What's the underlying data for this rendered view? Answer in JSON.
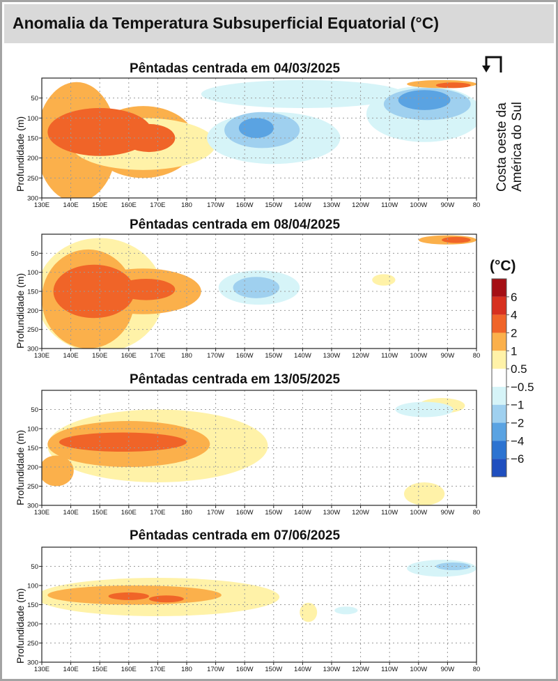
{
  "title": "Anomalia da Temperatura Subsuperficial Equatorial (°C)",
  "ylabel": "Profundidade (m)",
  "coast_note": [
    "Costa oeste da",
    "América do Sul"
  ],
  "colorbar": {
    "title": "(°C)",
    "labels": [
      "6",
      "4",
      "2",
      "1",
      "0.5",
      "−0.5",
      "−1",
      "−2",
      "−4",
      "−6"
    ],
    "colors": [
      "#a50f15",
      "#d7301f",
      "#f06428",
      "#fbb04b",
      "#fff2a8",
      "#ffffff",
      "#d6f4f8",
      "#9fd0ef",
      "#5aa3e2",
      "#2c73d1",
      "#1f4fbf"
    ]
  },
  "chart_data": [
    {
      "type": "heatmap",
      "title": "Pêntadas centrada em 04/03/2025",
      "xlabel": "",
      "ylabel": "Profundidade (m)",
      "x_ticks": [
        "130E",
        "140E",
        "150E",
        "160E",
        "170E",
        "180",
        "170W",
        "160W",
        "150W",
        "140W",
        "130W",
        "120W",
        "110W",
        "100W",
        "90W",
        "80"
      ],
      "y_ticks": [
        "50",
        "100",
        "150",
        "200",
        "250",
        "300"
      ],
      "xlim_deg_east": [
        130,
        280
      ],
      "ylim_m": [
        0,
        300
      ],
      "grid": true,
      "features": [
        {
          "level": 1,
          "lon": 142,
          "depth": 160,
          "rlon": 14,
          "rdepth": 150
        },
        {
          "level": 1,
          "lon": 165,
          "depth": 160,
          "rlon": 18,
          "rdepth": 90
        },
        {
          "level": 0.5,
          "lon": 165,
          "depth": 165,
          "rlon": 25,
          "rdepth": 65
        },
        {
          "level": 2,
          "lon": 150,
          "depth": 135,
          "rlon": 18,
          "rdepth": 60
        },
        {
          "level": 2,
          "lon": 167,
          "depth": 150,
          "rlon": 9,
          "rdepth": 35
        },
        {
          "level": -0.5,
          "lon": 220,
          "depth": 40,
          "rlon": 35,
          "rdepth": 35
        },
        {
          "level": -0.5,
          "lon": 210,
          "depth": 150,
          "rlon": 23,
          "rdepth": 65
        },
        {
          "level": -1,
          "lon": 206,
          "depth": 130,
          "rlon": 13,
          "rdepth": 45
        },
        {
          "level": -2,
          "lon": 204,
          "depth": 125,
          "rlon": 6,
          "rdepth": 25
        },
        {
          "level": -0.5,
          "lon": 262,
          "depth": 90,
          "rlon": 20,
          "rdepth": 70
        },
        {
          "level": -1,
          "lon": 263,
          "depth": 65,
          "rlon": 15,
          "rdepth": 40
        },
        {
          "level": -2,
          "lon": 262,
          "depth": 55,
          "rlon": 9,
          "rdepth": 25
        },
        {
          "level": 1,
          "lon": 268,
          "depth": 15,
          "rlon": 12,
          "rdepth": 10
        },
        {
          "level": 2,
          "lon": 272,
          "depth": 18,
          "rlon": 6,
          "rdepth": 7
        }
      ]
    },
    {
      "type": "heatmap",
      "title": "Pêntadas centrada em 08/04/2025",
      "xlabel": "",
      "ylabel": "Profundidade (m)",
      "x_ticks": [
        "130E",
        "140E",
        "150E",
        "160E",
        "170E",
        "180",
        "170W",
        "160W",
        "150W",
        "140W",
        "130W",
        "120W",
        "110W",
        "100W",
        "90W",
        "80"
      ],
      "y_ticks": [
        "50",
        "100",
        "150",
        "200",
        "250",
        "300"
      ],
      "xlim_deg_east": [
        130,
        280
      ],
      "ylim_m": [
        0,
        300
      ],
      "grid": true,
      "features": [
        {
          "level": 0.5,
          "lon": 150,
          "depth": 160,
          "rlon": 22,
          "rdepth": 150
        },
        {
          "level": 1,
          "lon": 146,
          "depth": 170,
          "rlon": 16,
          "rdepth": 130
        },
        {
          "level": 1,
          "lon": 165,
          "depth": 150,
          "rlon": 20,
          "rdepth": 60
        },
        {
          "level": 2,
          "lon": 148,
          "depth": 150,
          "rlon": 14,
          "rdepth": 70
        },
        {
          "level": 2,
          "lon": 166,
          "depth": 145,
          "rlon": 10,
          "rdepth": 28
        },
        {
          "level": -0.5,
          "lon": 205,
          "depth": 140,
          "rlon": 14,
          "rdepth": 45
        },
        {
          "level": -1,
          "lon": 204,
          "depth": 140,
          "rlon": 8,
          "rdepth": 28
        },
        {
          "level": 1,
          "lon": 270,
          "depth": 15,
          "rlon": 10,
          "rdepth": 12
        },
        {
          "level": 2,
          "lon": 273,
          "depth": 15,
          "rlon": 5,
          "rdepth": 8
        },
        {
          "level": 0.5,
          "lon": 248,
          "depth": 120,
          "rlon": 4,
          "rdepth": 15
        }
      ]
    },
    {
      "type": "heatmap",
      "title": "Pêntadas centrada em 13/05/2025",
      "xlabel": "",
      "ylabel": "Profundidade (m)",
      "x_ticks": [
        "130E",
        "140E",
        "150E",
        "160E",
        "170E",
        "180",
        "170W",
        "160W",
        "150W",
        "140W",
        "130W",
        "120W",
        "110W",
        "100W",
        "90W",
        "80"
      ],
      "y_ticks": [
        "50",
        "100",
        "150",
        "200",
        "250",
        "300"
      ],
      "xlim_deg_east": [
        130,
        280
      ],
      "ylim_m": [
        0,
        300
      ],
      "grid": true,
      "features": [
        {
          "level": 0.5,
          "lon": 170,
          "depth": 145,
          "rlon": 38,
          "rdepth": 95
        },
        {
          "level": 1,
          "lon": 160,
          "depth": 140,
          "rlon": 28,
          "rdepth": 60
        },
        {
          "level": 2,
          "lon": 158,
          "depth": 135,
          "rlon": 22,
          "rdepth": 25
        },
        {
          "level": 1,
          "lon": 135,
          "depth": 210,
          "rlon": 6,
          "rdepth": 40
        },
        {
          "level": 0.5,
          "lon": 268,
          "depth": 40,
          "rlon": 8,
          "rdepth": 20
        },
        {
          "level": -0.5,
          "lon": 262,
          "depth": 50,
          "rlon": 10,
          "rdepth": 20
        },
        {
          "level": 0.5,
          "lon": 262,
          "depth": 270,
          "rlon": 7,
          "rdepth": 30
        }
      ]
    },
    {
      "type": "heatmap",
      "title": "Pêntadas centrada em 07/06/2025",
      "xlabel": "",
      "ylabel": "Profundidade (m)",
      "x_ticks": [
        "130E",
        "140E",
        "150E",
        "160E",
        "170E",
        "180",
        "170W",
        "160W",
        "150W",
        "140W",
        "130W",
        "120W",
        "110W",
        "100W",
        "90W",
        "80"
      ],
      "y_ticks": [
        "50",
        "100",
        "150",
        "200",
        "250",
        "300"
      ],
      "xlim_deg_east": [
        130,
        280
      ],
      "ylim_m": [
        0,
        300
      ],
      "grid": true,
      "features": [
        {
          "level": 0.5,
          "lon": 170,
          "depth": 130,
          "rlon": 42,
          "rdepth": 50
        },
        {
          "level": 1,
          "lon": 162,
          "depth": 125,
          "rlon": 30,
          "rdepth": 25
        },
        {
          "level": 2,
          "lon": 160,
          "depth": 128,
          "rlon": 7,
          "rdepth": 10
        },
        {
          "level": 2,
          "lon": 173,
          "depth": 135,
          "rlon": 6,
          "rdepth": 9
        },
        {
          "level": -0.5,
          "lon": 268,
          "depth": 55,
          "rlon": 12,
          "rdepth": 22
        },
        {
          "level": -1,
          "lon": 272,
          "depth": 50,
          "rlon": 6,
          "rdepth": 10
        },
        {
          "level": 0.5,
          "lon": 222,
          "depth": 170,
          "rlon": 3,
          "rdepth": 25
        },
        {
          "level": -0.5,
          "lon": 235,
          "depth": 165,
          "rlon": 4,
          "rdepth": 10
        }
      ]
    }
  ]
}
